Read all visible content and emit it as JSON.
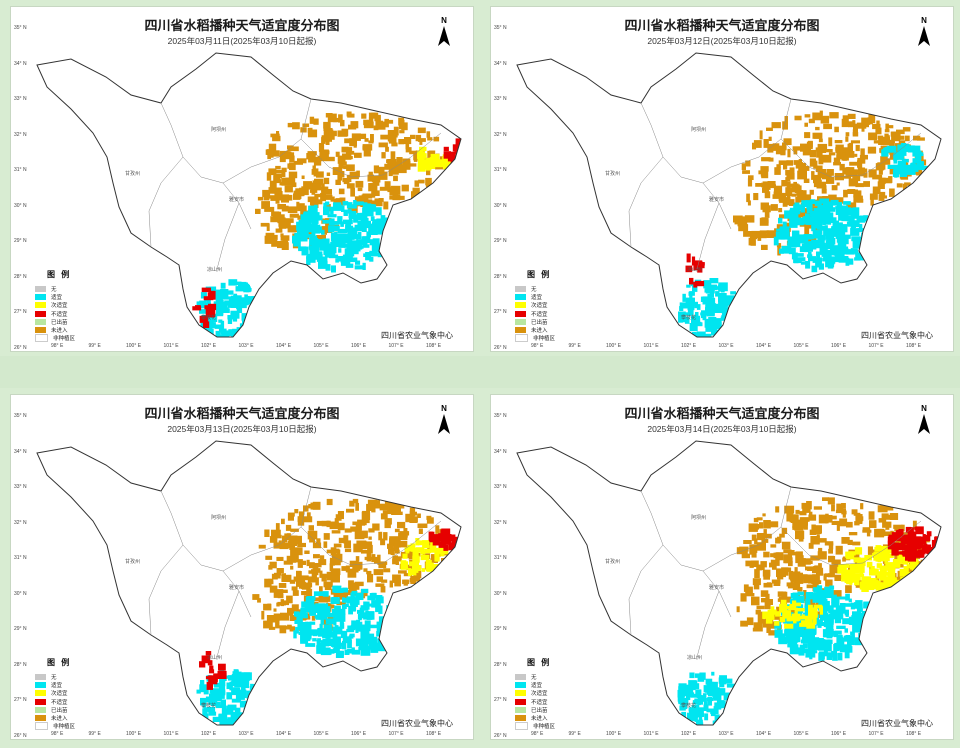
{
  "colors": {
    "none": "#c8c8c8",
    "suitable": "#00e5f0",
    "sub_suitable": "#ffff00",
    "unsuitable": "#e60000",
    "emerged": "#b8e6a0",
    "not_entered": "#d9920d",
    "non_planting": "#ffffff",
    "boundary": "#333333"
  },
  "panels": [
    {
      "title": "四川省水稻播种天气适宜度分布图",
      "subtitle": "2025年03月11日(2025年03月10日起报)",
      "north": "N",
      "credit": "四川省农业气象中心",
      "legend_title": "图 例"
    },
    {
      "title": "四川省水稻播种天气适宜度分布图",
      "subtitle": "2025年03月12日(2025年03月10日起报)",
      "north": "N",
      "credit": "四川省农业气象中心",
      "legend_title": "图 例"
    },
    {
      "title": "四川省水稻播种天气适宜度分布图",
      "subtitle": "2025年03月13日(2025年03月10日起报)",
      "north": "N",
      "credit": "四川省农业气象中心",
      "legend_title": "图 例"
    },
    {
      "title": "四川省水稻播种天气适宜度分布图",
      "subtitle": "2025年03月14日(2025年03月10日起报)",
      "north": "N",
      "credit": "四川省农业气象中心",
      "legend_title": "图 例"
    }
  ],
  "legend": [
    {
      "label": "无",
      "color_key": "none"
    },
    {
      "label": "适宜",
      "color_key": "suitable"
    },
    {
      "label": "次适宜",
      "color_key": "sub_suitable"
    },
    {
      "label": "不适宜",
      "color_key": "unsuitable"
    },
    {
      "label": "已出苗",
      "color_key": "emerged"
    },
    {
      "label": "未进入",
      "color_key": "not_entered"
    },
    {
      "label": "非种植区",
      "color_key": "non_planting"
    }
  ],
  "lat_labels": [
    "35° N",
    "34° N",
    "33° N",
    "32° N",
    "31° N",
    "30° N",
    "29° N",
    "28° N",
    "27° N",
    "26° N"
  ],
  "lon_labels": [
    "98° E",
    "99° E",
    "100° E",
    "101° E",
    "102° E",
    "103° E",
    "104° E",
    "105° E",
    "106° E",
    "107° E",
    "108° E"
  ],
  "region_labels": [
    "阿坝州",
    "甘孜州",
    "雅安市",
    "凉山州",
    "攀枝花"
  ]
}
